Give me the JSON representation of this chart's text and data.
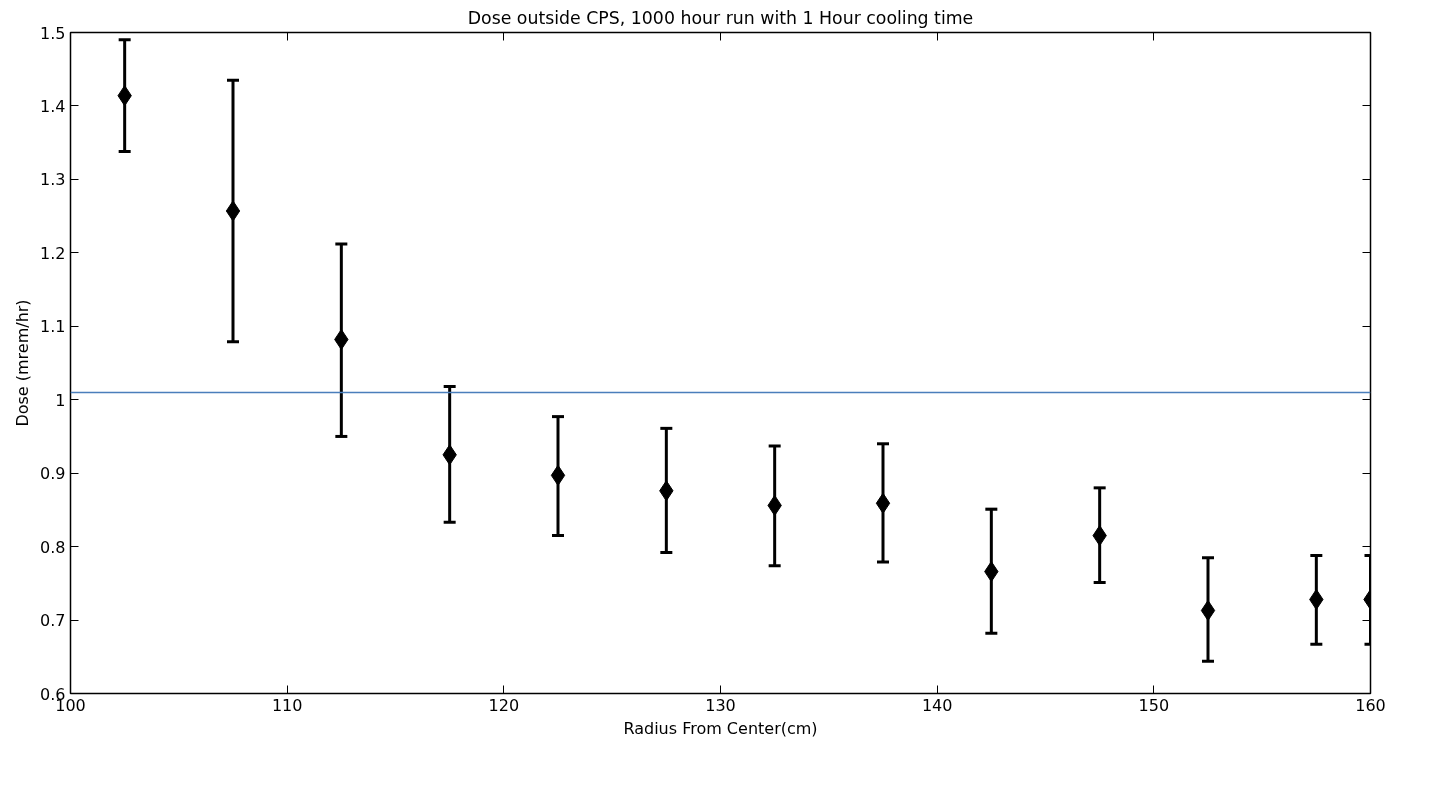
{
  "chart_data": {
    "type": "scatter",
    "title": "Dose outside CPS, 1000 hour run with 1 Hour cooling time",
    "xlabel": "Radius From Center(cm)",
    "ylabel": "Dose (mrem/hr)",
    "x": [
      102.5,
      107.5,
      112.5,
      117.5,
      122.5,
      127.5,
      132.5,
      137.5,
      142.5,
      147.5,
      152.5,
      157.5,
      160
    ],
    "series": [
      {
        "color": "#000000",
        "values": [
          1.414,
          1.257,
          1.082,
          0.925,
          0.897,
          0.876,
          0.856,
          0.859,
          0.766,
          0.815,
          0.713,
          0.728,
          0.728
        ],
        "errors": [
          [
            1.338,
            1.49
          ],
          [
            1.079,
            1.435
          ],
          [
            0.95,
            1.212
          ],
          [
            0.833,
            1.018
          ],
          [
            0.815,
            0.977
          ],
          [
            0.792,
            0.961
          ],
          [
            0.774,
            0.937
          ],
          [
            0.779,
            0.94
          ],
          [
            0.682,
            0.851
          ],
          [
            0.751,
            0.88
          ],
          [
            0.644,
            0.785
          ],
          [
            0.667,
            0.788
          ],
          [
            0.667,
            0.788
          ]
        ]
      }
    ],
    "xlim": [
      100,
      160
    ],
    "ylim": [
      0.6,
      1.5
    ],
    "xticks": [
      100,
      110,
      120,
      130,
      140,
      150,
      160
    ],
    "yticks": [
      0.6,
      0.7,
      0.8,
      0.9,
      1,
      1.1,
      1.2,
      1.3,
      1.4,
      1.5
    ],
    "ref_lines": [
      {
        "axis": "y",
        "value": 1.01,
        "color": "#4a7ebb"
      }
    ],
    "marker": "diamond",
    "grid": false
  }
}
